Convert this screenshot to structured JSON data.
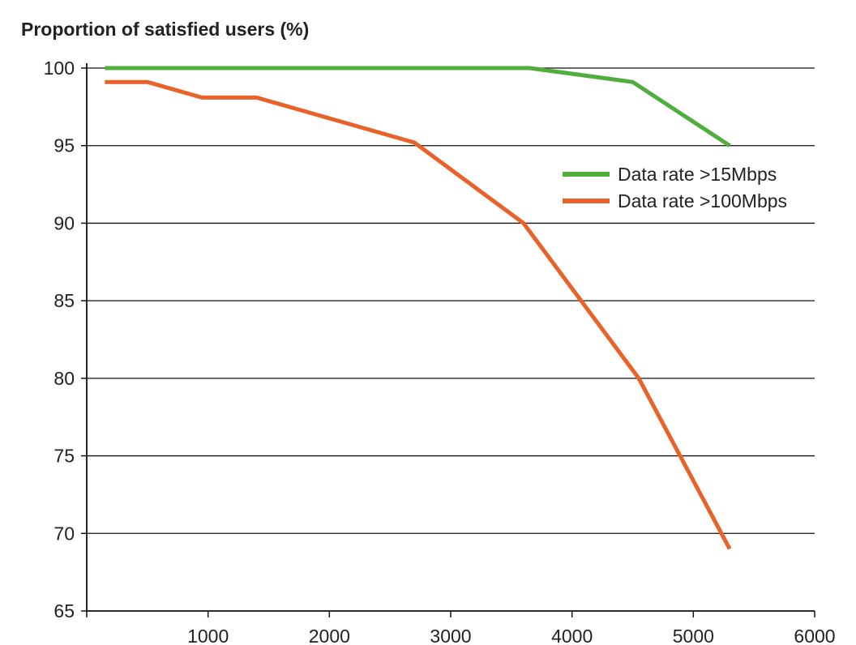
{
  "chart_data": {
    "type": "line",
    "title": "Proportion of satisfied users (%)",
    "xlabel": "",
    "ylabel": "",
    "xlim": [
      0,
      6000
    ],
    "ylim": [
      65,
      100
    ],
    "x_ticks": [
      "1000",
      "2000",
      "3000",
      "4000",
      "5000",
      "6000"
    ],
    "y_ticks": [
      "100",
      "95",
      "90",
      "85",
      "80",
      "75",
      "70",
      "65"
    ],
    "grid": "horizontal",
    "legend_position": "right",
    "series": [
      {
        "name": "Data rate >15Mbps",
        "color": "#4fae3c",
        "x": [
          150,
          3650,
          4500,
          5300
        ],
        "y": [
          100,
          100,
          99.1,
          95
        ]
      },
      {
        "name": "Data rate >100Mbps",
        "color": "#e8622a",
        "x": [
          150,
          500,
          950,
          1400,
          2700,
          3600,
          4550,
          5300
        ],
        "y": [
          99.1,
          99.1,
          98.1,
          98.1,
          95.2,
          90,
          80,
          69
        ]
      }
    ]
  }
}
